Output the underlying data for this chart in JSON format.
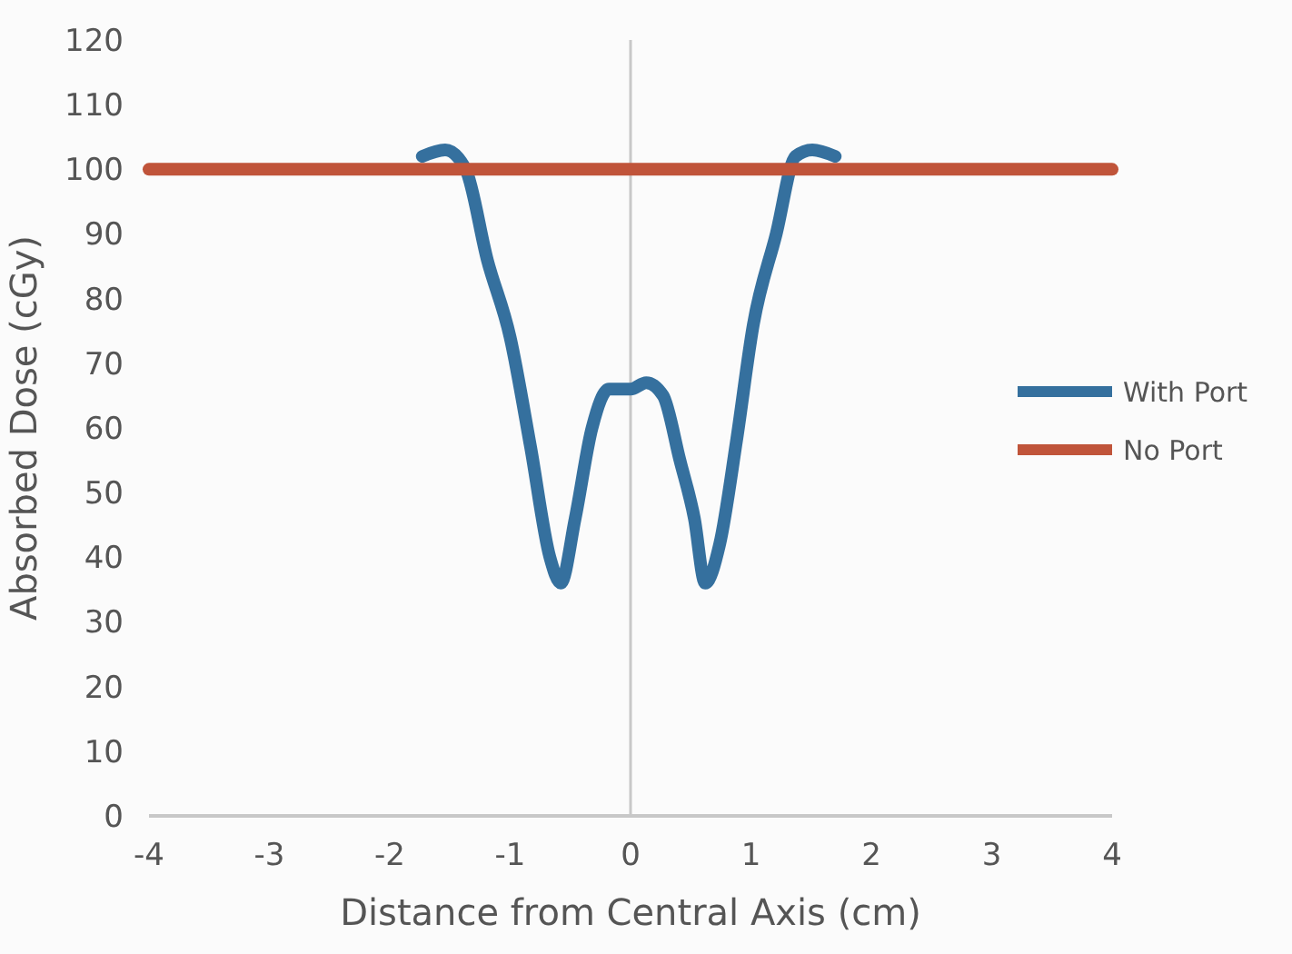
{
  "chart_data": {
    "type": "line",
    "xlabel": "Distance from Central Axis (cm)",
    "ylabel": "Absorbed Dose (cGy)",
    "xlim": [
      -4,
      4
    ],
    "xticks": [
      -4,
      -3,
      -2,
      -1,
      0,
      1,
      2,
      3,
      4
    ],
    "ylim": [
      0,
      120
    ],
    "yticks": [
      0,
      10,
      20,
      30,
      40,
      50,
      60,
      70,
      80,
      90,
      100,
      110,
      120
    ],
    "legend": "right",
    "line_style": "solid",
    "marker": "none",
    "series": [
      {
        "name": "With Port",
        "color": "#35709e",
        "x": [
          -1.73,
          -1.54,
          -1.37,
          -1.19,
          -1.0,
          -0.83,
          -0.67,
          -0.58,
          -0.46,
          -0.32,
          -0.18,
          0,
          0.13,
          0.27,
          0.41,
          0.53,
          0.62,
          0.74,
          0.88,
          1.02,
          1.21,
          1.37,
          1.51,
          1.7
        ],
        "values": [
          102,
          103,
          100,
          86,
          74,
          57,
          40,
          36,
          46,
          60,
          66,
          66,
          67,
          65,
          55,
          46,
          36,
          42,
          58,
          76,
          90,
          102,
          103,
          102
        ]
      },
      {
        "name": "No Port",
        "color": "#c0543a",
        "x": [
          -4,
          4
        ],
        "values": [
          100,
          100
        ]
      }
    ]
  }
}
